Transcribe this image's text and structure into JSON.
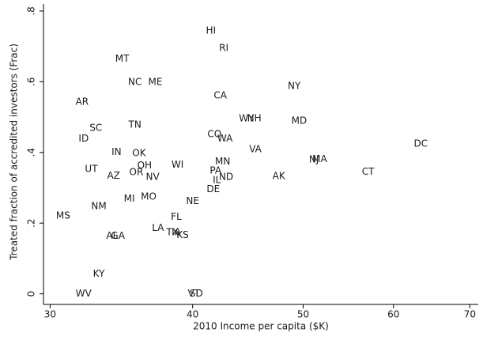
{
  "chart_data": {
    "type": "scatter",
    "x_label": "2010 Income per capita ($K)",
    "y_label": "Treated fraction of accredited investors (Frac)",
    "xscale": "log",
    "xlim": [
      29.6,
      71.2
    ],
    "xticks": [
      30,
      40,
      50,
      60,
      70
    ],
    "ylim": [
      -0.03,
      0.82
    ],
    "yticks": [
      0,
      {
        "value": 0.2,
        "label": ".2"
      },
      {
        "value": 0.4,
        "label": ".4"
      },
      {
        "value": 0.6,
        "label": ".6"
      },
      {
        "value": 0.8,
        "label": ".8"
      }
    ],
    "labels": [
      "HI",
      "RI",
      "MT",
      "NC",
      "ME",
      "NY",
      "AR",
      "CA",
      "SC",
      "TN",
      "WY",
      "NH",
      "MD",
      "ID",
      "CO",
      "WA",
      "DC",
      "IN",
      "OK",
      "VA",
      "NJ",
      "MA",
      "MN",
      "OH",
      "WI",
      "UT",
      "PA",
      "CT",
      "AK",
      "AZ",
      "OR",
      "NV",
      "ND",
      "IL",
      "DE",
      "MI",
      "MO",
      "NE",
      "NM",
      "MS",
      "FL",
      "LA",
      "TX",
      "IA",
      "KS",
      "AL",
      "GA",
      "KY",
      "WV",
      "VT",
      "SD"
    ],
    "x": [
      41.5,
      42.6,
      34.7,
      35.6,
      37.1,
      49.1,
      32.0,
      42.3,
      32.9,
      35.6,
      44.6,
      45.3,
      49.6,
      32.1,
      41.8,
      42.7,
      63.4,
      34.3,
      35.9,
      45.4,
      51.1,
      51.7,
      42.5,
      36.3,
      38.8,
      32.6,
      41.9,
      57.0,
      47.6,
      34.1,
      35.7,
      36.9,
      42.8,
      42.0,
      41.7,
      35.2,
      36.6,
      40.0,
      33.1,
      30.8,
      38.7,
      37.3,
      38.4,
      38.7,
      39.2,
      34.0,
      34.4,
      33.1,
      32.1,
      40.1,
      40.3
    ],
    "values": [
      0.744,
      0.695,
      0.664,
      0.599,
      0.599,
      0.587,
      0.543,
      0.561,
      0.469,
      0.478,
      0.496,
      0.496,
      0.489,
      0.439,
      0.451,
      0.439,
      0.424,
      0.401,
      0.397,
      0.408,
      0.379,
      0.381,
      0.374,
      0.363,
      0.365,
      0.352,
      0.348,
      0.345,
      0.332,
      0.334,
      0.343,
      0.33,
      0.33,
      0.321,
      0.296,
      0.269,
      0.274,
      0.262,
      0.247,
      0.22,
      0.217,
      0.186,
      0.173,
      0.173,
      0.166,
      0.164,
      0.164,
      0.056,
      0,
      0,
      0
    ]
  }
}
